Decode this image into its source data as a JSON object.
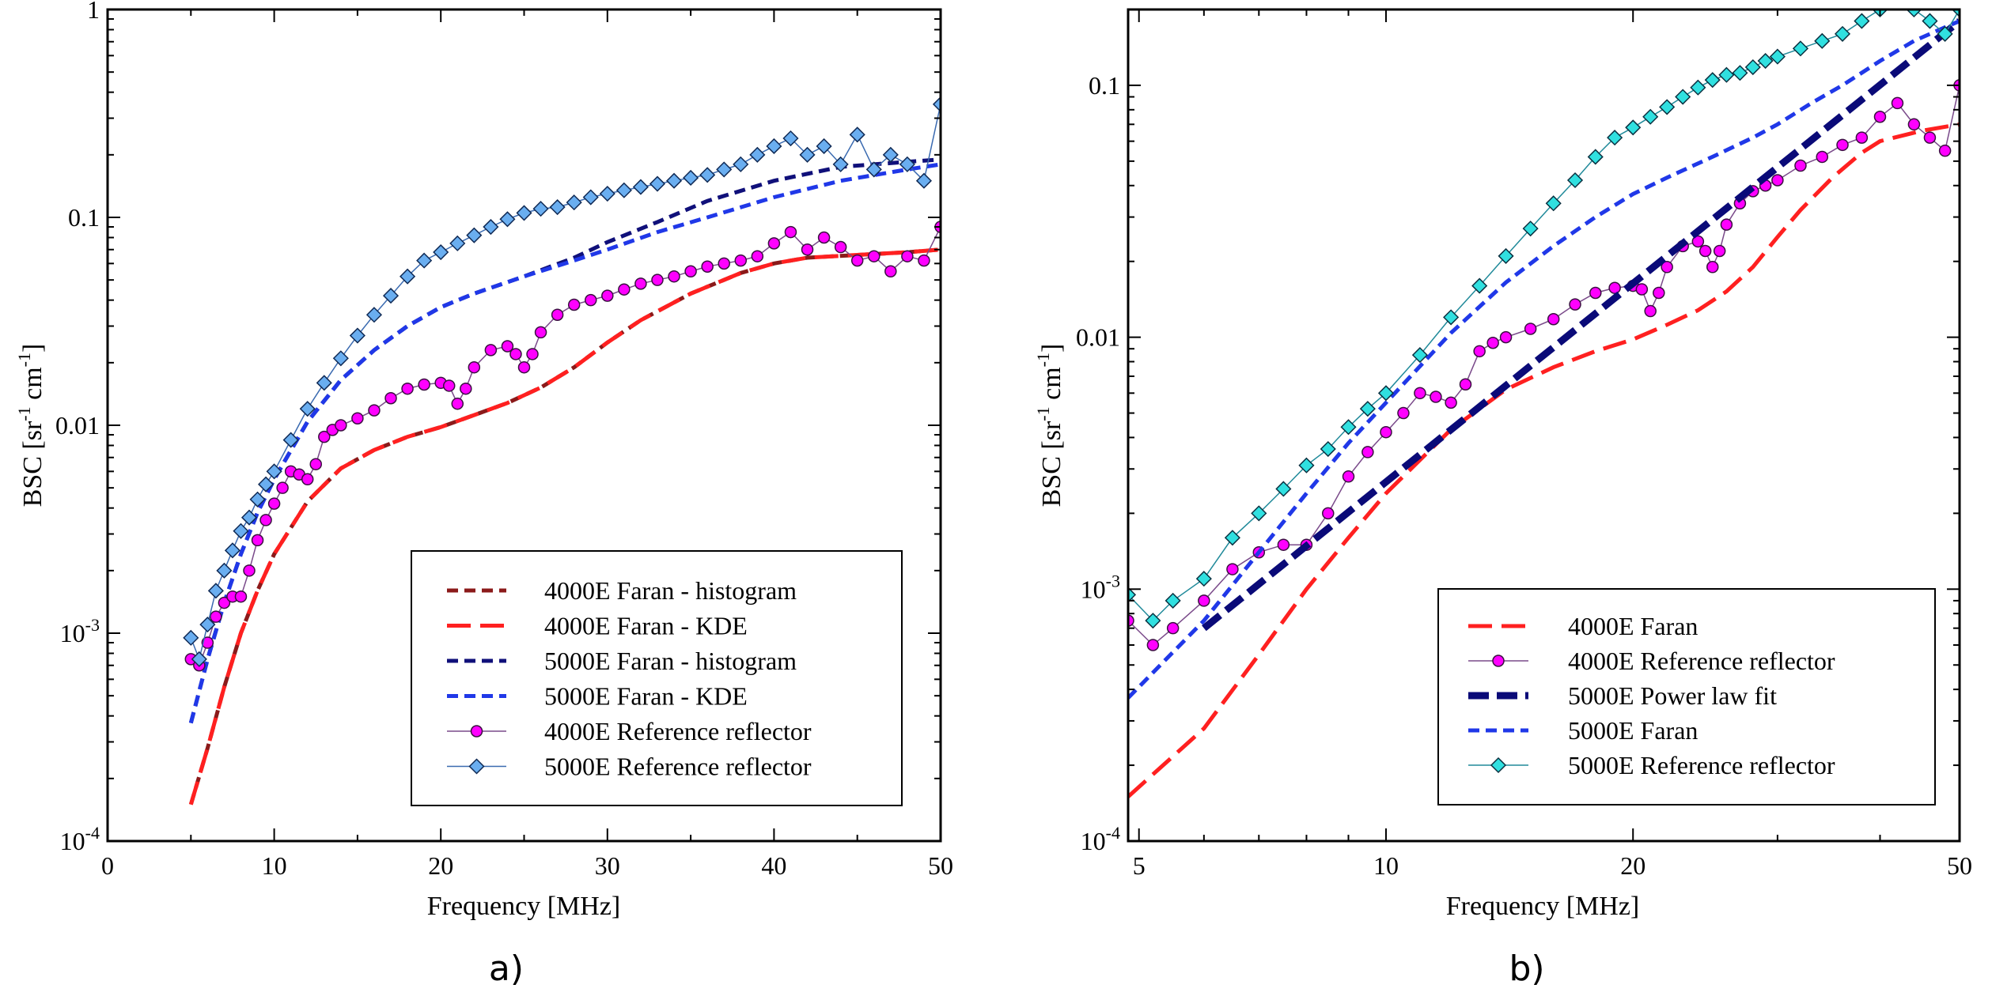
{
  "chart_data": [
    {
      "type": "line",
      "panel_label": "a)",
      "xlabel": "Frequency [MHz]",
      "ylabel_base": "BSC [sr",
      "ylabel_sup1": "-1",
      "ylabel_mid": " cm",
      "ylabel_sup2": "-1",
      "ylabel_end": "]",
      "xscale": "linear",
      "yscale": "log",
      "xlim": [
        0,
        50
      ],
      "ylim": [
        0.0001,
        1
      ],
      "xticks": [
        {
          "value": 0,
          "label": "0"
        },
        {
          "value": 10,
          "label": "10"
        },
        {
          "value": 20,
          "label": "20"
        },
        {
          "value": 30,
          "label": "30"
        },
        {
          "value": 40,
          "label": "40"
        },
        {
          "value": 50,
          "label": "50"
        }
      ],
      "yticks": [
        {
          "value": 0.0001,
          "base": "10",
          "exp": "-4"
        },
        {
          "value": 0.001,
          "base": "10",
          "exp": "-3"
        },
        {
          "value": 0.01,
          "base": "0.01",
          "exp": ""
        },
        {
          "value": 0.1,
          "base": "0.1",
          "exp": ""
        },
        {
          "value": 1,
          "base": "1",
          "exp": ""
        }
      ],
      "legend_position": "bottom-right",
      "series": [
        {
          "name": "4000E Faran - histogram",
          "style": "dash",
          "color": "#8B1A1A",
          "width": 5,
          "x": [
            5,
            6,
            7,
            8,
            9,
            10,
            12,
            14,
            16,
            18,
            20,
            22,
            24,
            26,
            28,
            30,
            32,
            35,
            38,
            40,
            42,
            45,
            48,
            50
          ],
          "y": [
            0.00015,
            0.00028,
            0.00055,
            0.001,
            0.0016,
            0.0024,
            0.0043,
            0.0062,
            0.0076,
            0.0088,
            0.0098,
            0.0112,
            0.0128,
            0.0152,
            0.019,
            0.025,
            0.032,
            0.043,
            0.054,
            0.06,
            0.064,
            0.066,
            0.068,
            0.07
          ]
        },
        {
          "name": "4000E Faran - KDE",
          "style": "longdash",
          "color": "#FF2020",
          "width": 5,
          "x": [
            5,
            6,
            7,
            8,
            9,
            10,
            12,
            14,
            16,
            18,
            20,
            22,
            24,
            26,
            28,
            30,
            32,
            35,
            38,
            40,
            42,
            45,
            48,
            50
          ],
          "y": [
            0.00015,
            0.00028,
            0.00055,
            0.001,
            0.0016,
            0.0024,
            0.0043,
            0.0062,
            0.0076,
            0.0088,
            0.0098,
            0.0112,
            0.0128,
            0.0152,
            0.019,
            0.025,
            0.032,
            0.043,
            0.054,
            0.06,
            0.064,
            0.066,
            0.068,
            0.07
          ]
        },
        {
          "name": "5000E Faran - histogram",
          "style": "dash",
          "color": "#10107A",
          "width": 5,
          "x": [
            5,
            6,
            7,
            8,
            9,
            10,
            12,
            14,
            16,
            18,
            20,
            22,
            25,
            28,
            30,
            33,
            36,
            40,
            44,
            48,
            50
          ],
          "y": [
            0.00037,
            0.00075,
            0.0014,
            0.0024,
            0.0038,
            0.0055,
            0.0104,
            0.0165,
            0.023,
            0.03,
            0.037,
            0.043,
            0.052,
            0.064,
            0.076,
            0.095,
            0.12,
            0.15,
            0.175,
            0.185,
            0.19
          ]
        },
        {
          "name": "5000E Faran - KDE",
          "style": "dash",
          "color": "#2038E8",
          "width": 5,
          "x": [
            5,
            6,
            7,
            8,
            9,
            10,
            12,
            14,
            16,
            18,
            20,
            22,
            25,
            28,
            30,
            33,
            36,
            40,
            44,
            48,
            50
          ],
          "y": [
            0.00037,
            0.00075,
            0.0014,
            0.0024,
            0.0038,
            0.0055,
            0.0104,
            0.0165,
            0.023,
            0.03,
            0.037,
            0.043,
            0.052,
            0.062,
            0.07,
            0.085,
            0.1,
            0.125,
            0.15,
            0.17,
            0.18
          ]
        },
        {
          "name": "4000E Reference reflector",
          "style": "marker-circle",
          "color": "#FF00FF",
          "edge": "#3a1040",
          "line": "#7a4a8a",
          "x": [
            5,
            5.5,
            6,
            6.5,
            7,
            7.5,
            8,
            8.5,
            9,
            9.5,
            10,
            10.5,
            11,
            11.5,
            12,
            12.5,
            13,
            13.5,
            14,
            15,
            16,
            17,
            18,
            19,
            20,
            20.5,
            21,
            21.5,
            22,
            23,
            24,
            24.5,
            25,
            25.5,
            26,
            27,
            28,
            29,
            30,
            31,
            32,
            33,
            34,
            35,
            36,
            37,
            38,
            39,
            40,
            41,
            42,
            43,
            44,
            45,
            46,
            47,
            48,
            49,
            50
          ],
          "y": [
            0.00075,
            0.0007,
            0.0009,
            0.0012,
            0.0014,
            0.0015,
            0.0015,
            0.002,
            0.0028,
            0.0035,
            0.0042,
            0.005,
            0.006,
            0.0058,
            0.0055,
            0.0065,
            0.0088,
            0.0095,
            0.01,
            0.0108,
            0.0118,
            0.0135,
            0.015,
            0.0157,
            0.016,
            0.0155,
            0.0127,
            0.015,
            0.019,
            0.023,
            0.024,
            0.022,
            0.019,
            0.022,
            0.028,
            0.034,
            0.038,
            0.04,
            0.042,
            0.045,
            0.048,
            0.05,
            0.052,
            0.055,
            0.058,
            0.06,
            0.062,
            0.065,
            0.075,
            0.085,
            0.07,
            0.08,
            0.072,
            0.062,
            0.065,
            0.055,
            0.065,
            0.062,
            0.09
          ]
        },
        {
          "name": "5000E Reference reflector",
          "style": "marker-diamond",
          "color": "#6AAEF0",
          "edge": "#102a55",
          "line": "#3a6ab0",
          "x": [
            5,
            5.5,
            6,
            6.5,
            7,
            7.5,
            8,
            8.5,
            9,
            9.5,
            10,
            11,
            12,
            13,
            14,
            15,
            16,
            17,
            18,
            19,
            20,
            21,
            22,
            23,
            24,
            25,
            26,
            27,
            28,
            29,
            30,
            31,
            32,
            33,
            34,
            35,
            36,
            37,
            38,
            39,
            40,
            41,
            42,
            43,
            44,
            45,
            46,
            47,
            48,
            49,
            50
          ],
          "y": [
            0.00095,
            0.00075,
            0.0011,
            0.0016,
            0.002,
            0.0025,
            0.0031,
            0.0036,
            0.0044,
            0.0052,
            0.006,
            0.0085,
            0.012,
            0.016,
            0.021,
            0.027,
            0.034,
            0.042,
            0.052,
            0.062,
            0.068,
            0.075,
            0.082,
            0.09,
            0.098,
            0.105,
            0.11,
            0.112,
            0.118,
            0.125,
            0.13,
            0.135,
            0.14,
            0.145,
            0.15,
            0.155,
            0.16,
            0.17,
            0.18,
            0.2,
            0.22,
            0.24,
            0.2,
            0.22,
            0.18,
            0.25,
            0.17,
            0.2,
            0.18,
            0.15,
            0.35
          ]
        }
      ]
    },
    {
      "type": "line",
      "panel_label": "b)",
      "xlabel": "Frequency [MHz]",
      "ylabel_base": "BSC [sr",
      "ylabel_sup1": "-1",
      "ylabel_mid": " cm",
      "ylabel_sup2": "-1",
      "ylabel_end": "]",
      "xscale": "log",
      "yscale": "log",
      "xlim": [
        4.85,
        50
      ],
      "ylim": [
        0.0001,
        0.2
      ],
      "xticks": [
        {
          "value": 5,
          "label": "5"
        },
        {
          "value": 10,
          "label": "10"
        },
        {
          "value": 20,
          "label": "20"
        },
        {
          "value": 50,
          "label": "50"
        }
      ],
      "yticks": [
        {
          "value": 0.0001,
          "base": "10",
          "exp": "-4"
        },
        {
          "value": 0.001,
          "base": "10",
          "exp": "-3"
        },
        {
          "value": 0.01,
          "base": "0.01",
          "exp": ""
        },
        {
          "value": 0.1,
          "base": "0.1",
          "exp": ""
        }
      ],
      "legend_position": "bottom-right",
      "series": [
        {
          "name": "4000E Faran",
          "style": "longdash",
          "color": "#FF2020",
          "width": 5,
          "x": [
            4.85,
            6,
            7,
            8,
            9,
            10,
            12,
            14,
            16,
            18,
            20,
            22,
            24,
            26,
            28,
            30,
            32,
            35,
            38,
            40,
            45,
            50
          ],
          "y": [
            0.00015,
            0.00028,
            0.00055,
            0.001,
            0.0016,
            0.0024,
            0.0043,
            0.0062,
            0.0076,
            0.0088,
            0.0098,
            0.0112,
            0.0128,
            0.0152,
            0.019,
            0.025,
            0.032,
            0.043,
            0.054,
            0.06,
            0.066,
            0.07
          ]
        },
        {
          "name": "4000E Reference reflector",
          "style": "marker-circle",
          "color": "#FF00FF",
          "edge": "#3a1040",
          "line": "#7a4a8a",
          "x": [
            4.85,
            5.2,
            5.5,
            6,
            6.5,
            7,
            7.5,
            8,
            8.5,
            9,
            9.5,
            10,
            10.5,
            11,
            11.5,
            12,
            12.5,
            13,
            13.5,
            14,
            15,
            16,
            17,
            18,
            19,
            20,
            20.5,
            21,
            21.5,
            22,
            23,
            24,
            24.5,
            25,
            25.5,
            26,
            27,
            28,
            29,
            30,
            32,
            34,
            36,
            38,
            40,
            42,
            44,
            46,
            48,
            50
          ],
          "y": [
            0.00075,
            0.0006,
            0.0007,
            0.0009,
            0.0012,
            0.0014,
            0.0015,
            0.0015,
            0.002,
            0.0028,
            0.0035,
            0.0042,
            0.005,
            0.006,
            0.0058,
            0.0055,
            0.0065,
            0.0088,
            0.0095,
            0.01,
            0.0108,
            0.0118,
            0.0135,
            0.015,
            0.0157,
            0.016,
            0.0155,
            0.0127,
            0.015,
            0.019,
            0.023,
            0.024,
            0.022,
            0.019,
            0.022,
            0.028,
            0.034,
            0.038,
            0.04,
            0.042,
            0.048,
            0.052,
            0.058,
            0.062,
            0.075,
            0.085,
            0.07,
            0.062,
            0.055,
            0.1
          ]
        },
        {
          "name": "5000E Power law fit",
          "style": "bolddash",
          "color": "#0A0A78",
          "width": 9,
          "x": [
            6,
            50
          ],
          "y": [
            0.0007,
            0.18
          ]
        },
        {
          "name": "5000E Faran",
          "style": "dash",
          "color": "#2038E8",
          "width": 5,
          "x": [
            4.85,
            6,
            7,
            8,
            9,
            10,
            12,
            14,
            16,
            18,
            20,
            22,
            25,
            28,
            30,
            33,
            36,
            40,
            44,
            48,
            50
          ],
          "y": [
            0.00037,
            0.00075,
            0.0014,
            0.0024,
            0.0038,
            0.0055,
            0.0104,
            0.0165,
            0.023,
            0.03,
            0.037,
            0.043,
            0.052,
            0.062,
            0.07,
            0.085,
            0.1,
            0.125,
            0.15,
            0.17,
            0.18
          ]
        },
        {
          "name": "5000E Reference reflector",
          "style": "marker-diamond",
          "color": "#30E0E0",
          "edge": "#0a3040",
          "line": "#208a9a",
          "x": [
            4.85,
            5.2,
            5.5,
            6,
            6.5,
            7,
            7.5,
            8,
            8.5,
            9,
            9.5,
            10,
            11,
            12,
            13,
            14,
            15,
            16,
            17,
            18,
            19,
            20,
            21,
            22,
            23,
            24,
            25,
            26,
            27,
            28,
            29,
            30,
            32,
            34,
            36,
            38,
            40,
            42,
            44,
            46,
            48,
            50
          ],
          "y": [
            0.00095,
            0.00075,
            0.0009,
            0.0011,
            0.0016,
            0.002,
            0.0025,
            0.0031,
            0.0036,
            0.0044,
            0.0052,
            0.006,
            0.0085,
            0.012,
            0.016,
            0.021,
            0.027,
            0.034,
            0.042,
            0.052,
            0.062,
            0.068,
            0.075,
            0.082,
            0.09,
            0.098,
            0.105,
            0.11,
            0.112,
            0.118,
            0.125,
            0.13,
            0.14,
            0.15,
            0.16,
            0.18,
            0.2,
            0.22,
            0.2,
            0.18,
            0.16,
            0.2
          ]
        }
      ]
    }
  ]
}
